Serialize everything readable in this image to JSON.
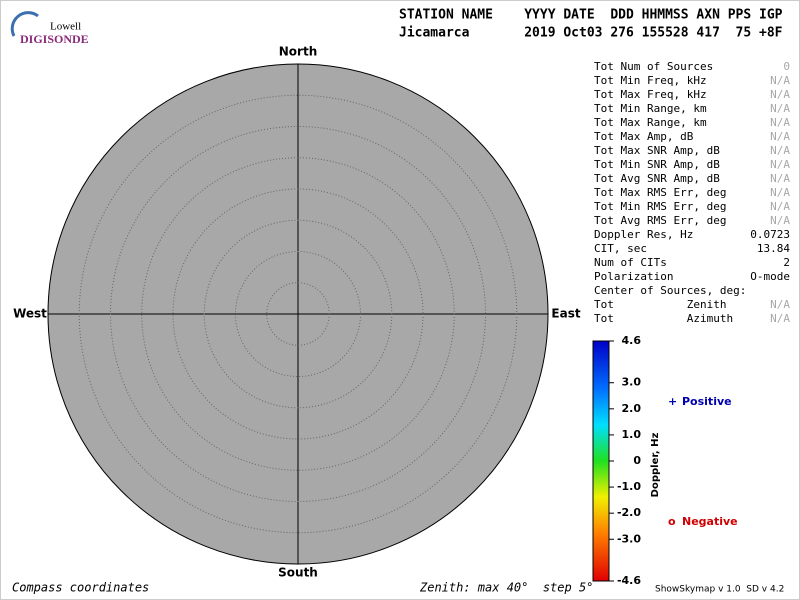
{
  "logo": {
    "org": "Lowell",
    "product": "DIGISONDE"
  },
  "header": {
    "columns": "STATION NAME    YYYY DATE  DDD HHMMSS AXN PPS IGP",
    "values": "Jicamarca       2019 Oct03 276 155528 417  75 +8F"
  },
  "skymap": {
    "north": "North",
    "south": "South",
    "west": "West",
    "east": "East"
  },
  "stats": [
    {
      "label": "Tot Num of Sources",
      "value": "0",
      "color": "#a8a8a8"
    },
    {
      "label": "Tot Min Freq, kHz",
      "value": "N/A",
      "color": "#a8a8a8"
    },
    {
      "label": "Tot Max Freq, kHz",
      "value": "N/A",
      "color": "#a8a8a8"
    },
    {
      "label": "Tot Min Range, km",
      "value": "N/A",
      "color": "#a8a8a8"
    },
    {
      "label": "Tot Max Range, km",
      "value": "N/A",
      "color": "#a8a8a8"
    },
    {
      "label": "Tot Max Amp, dB",
      "value": "N/A",
      "color": "#a8a8a8"
    },
    {
      "label": "Tot Max SNR Amp, dB",
      "value": "N/A",
      "color": "#a8a8a8"
    },
    {
      "label": "Tot Min SNR Amp, dB",
      "value": "N/A",
      "color": "#a8a8a8"
    },
    {
      "label": "Tot Avg SNR Amp, dB",
      "value": "N/A",
      "color": "#a8a8a8"
    },
    {
      "label": "Tot Max RMS Err, deg",
      "value": "N/A",
      "color": "#a8a8a8"
    },
    {
      "label": "Tot Min RMS Err, deg",
      "value": "N/A",
      "color": "#a8a8a8"
    },
    {
      "label": "Tot Avg RMS Err, deg",
      "value": "N/A",
      "color": "#a8a8a8"
    },
    {
      "label": "Doppler Res, Hz",
      "value": "0.0723",
      "color": "#000000"
    },
    {
      "label": "CIT, sec",
      "value": "13.84",
      "color": "#000000"
    },
    {
      "label": "Num of CITs",
      "value": "2",
      "color": "#000000"
    },
    {
      "label": "Polarization",
      "value": "O-mode",
      "color": "#000000"
    },
    {
      "label": "Center of Sources, deg:"
    },
    {
      "label": "Tot           Zenith",
      "value": "N/A",
      "color": "#a8a8a8"
    },
    {
      "label": "Tot           Azimuth",
      "value": "N/A",
      "color": "#a8a8a8"
    }
  ],
  "colorbar": {
    "title": "Doppler, Hz",
    "range": [
      -4.6,
      4.6
    ],
    "ticks": [
      4.6,
      {
        "value": 3.0,
        "label": "3.0"
      },
      {
        "value": 2.0,
        "label": "2.0"
      },
      {
        "value": 1.0,
        "label": "1.0"
      },
      0,
      {
        "value": -1.0,
        "label": "-1.0"
      },
      {
        "value": -2.0,
        "label": "-2.0"
      },
      {
        "value": -3.0,
        "label": "-3.0"
      },
      -4.6
    ]
  },
  "legend": [
    {
      "symbol": "+",
      "label": "Positive",
      "color": "#0000b0"
    },
    {
      "symbol": "o",
      "label": "Negative",
      "color": "#d00000"
    }
  ],
  "footer": {
    "coordinates": "Compass coordinates",
    "zenith": "Zenith: max 40°  step 5°",
    "version": "ShowSkymap v 1.0  SD v 4.2"
  }
}
